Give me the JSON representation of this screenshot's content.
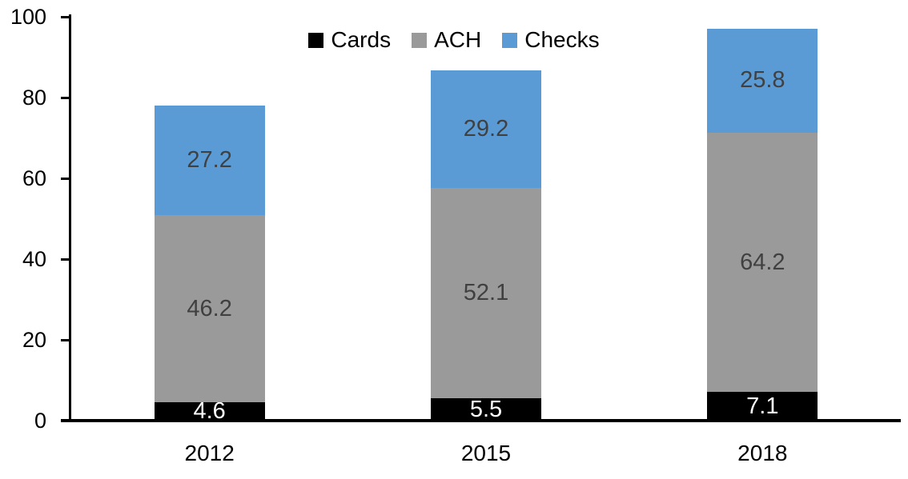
{
  "chart_data": {
    "type": "bar",
    "stacked": true,
    "title": "",
    "xlabel": "",
    "ylabel": "",
    "categories": [
      "2012",
      "2015",
      "2018"
    ],
    "series": [
      {
        "name": "Cards",
        "color": "#000000",
        "label_color": "#FFFFFF",
        "values": [
          4.6,
          5.5,
          7.1
        ]
      },
      {
        "name": "ACH",
        "color": "#9A9A9A",
        "label_color": "#404040",
        "values": [
          46.2,
          52.1,
          64.2
        ]
      },
      {
        "name": "Checks",
        "color": "#5B9BD5",
        "label_color": "#404040",
        "values": [
          27.2,
          29.2,
          25.8
        ]
      }
    ],
    "totals": [
      78.0,
      86.8,
      97.1
    ],
    "ylim": [
      0,
      100
    ],
    "yticks": [
      0,
      20,
      40,
      60,
      80,
      100
    ],
    "grid": false,
    "legend_position": "top-center",
    "axis_color": "#000000",
    "background_color": "#FFFFFF"
  }
}
